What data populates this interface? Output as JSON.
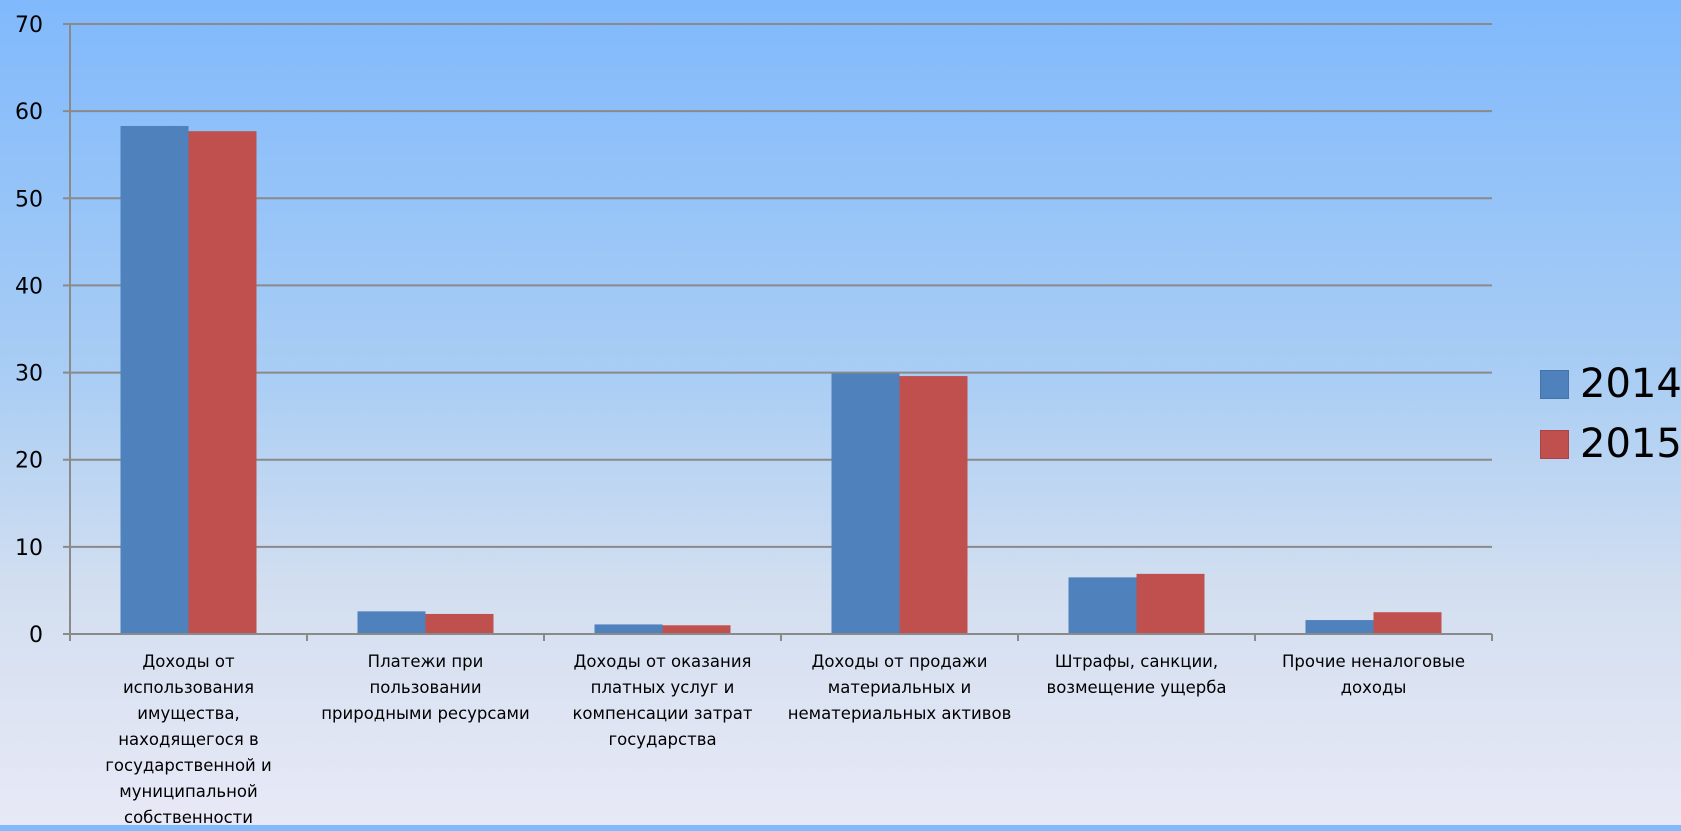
{
  "chart_data": {
    "type": "bar",
    "categories": [
      "Доходы от использования имущества, находящегося в государственной и муниципальной собственности",
      "Платежи при пользовании природными ресурсами",
      "Доходы от оказания платных услуг и компенсации затрат государства",
      "Доходы от продажи материальных и нематериальных активов",
      "Штрафы, санкции, возмещение ущерба",
      "Прочие неналоговые доходы"
    ],
    "category_lines": [
      [
        "Доходы от",
        "использования",
        "имущества,",
        "находящегося в",
        "государственной и",
        "муниципальной",
        "собственности"
      ],
      [
        "Платежи при",
        "пользовании",
        "природными ресурсами"
      ],
      [
        "Доходы от оказания",
        "платных услуг и",
        "компенсации затрат",
        "государства"
      ],
      [
        "Доходы от продажи",
        "материальных и",
        "нематериальных активов"
      ],
      [
        "Штрафы, санкции,",
        "возмещение ущерба"
      ],
      [
        "Прочие неналоговые",
        "доходы"
      ]
    ],
    "series": [
      {
        "name": "2014",
        "color": "#4f81bd",
        "values": [
          58.3,
          2.6,
          1.1,
          29.9,
          6.5,
          1.6
        ]
      },
      {
        "name": "2015",
        "color": "#c0504d",
        "values": [
          57.7,
          2.3,
          1.0,
          29.6,
          6.9,
          2.5
        ]
      }
    ],
    "ylim": [
      0,
      70
    ],
    "yticks": [
      "0",
      "10",
      "20",
      "30",
      "40",
      "50",
      "60",
      "70"
    ],
    "grid": true,
    "legend_position": "right"
  }
}
